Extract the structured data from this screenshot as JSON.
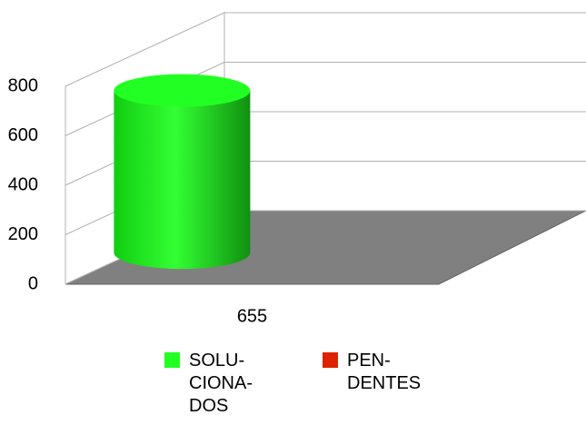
{
  "chart_data": {
    "type": "bar3d",
    "categories": [
      "655"
    ],
    "series": [
      {
        "name": "SOLU-CIONA-DOS",
        "color": "#22ff22",
        "values": [
          655
        ]
      },
      {
        "name": "PEN-DENTES",
        "color": "#dd2200",
        "values": [
          0
        ]
      }
    ],
    "ylim": [
      0,
      800
    ],
    "yticks": [
      0,
      200,
      400,
      600,
      800
    ],
    "grid": true
  }
}
